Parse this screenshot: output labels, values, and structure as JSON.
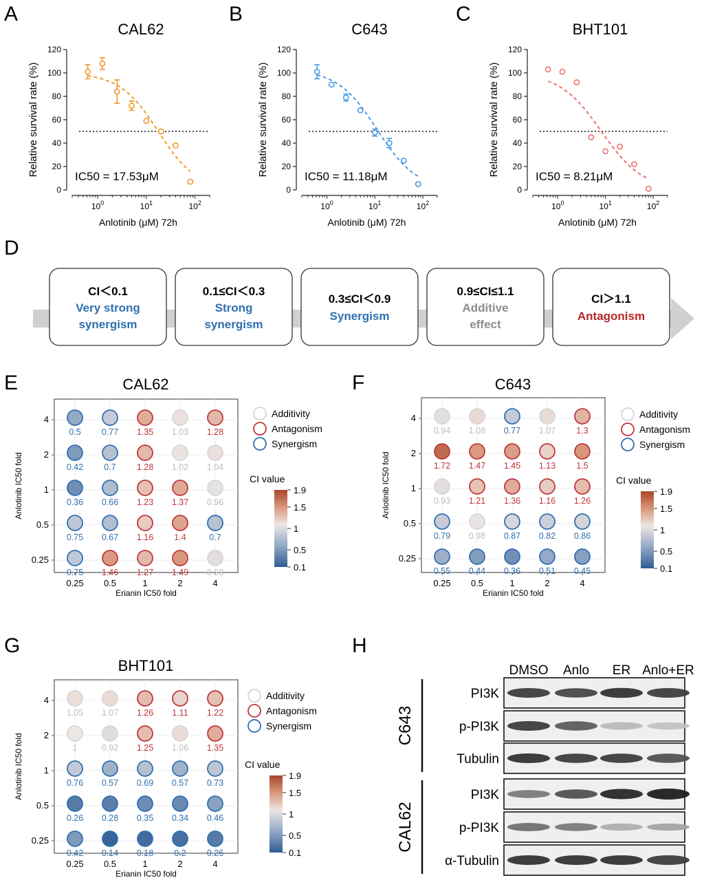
{
  "panel_letters": {
    "a": "A",
    "b": "B",
    "c": "C",
    "d": "D",
    "e": "E",
    "f": "F",
    "g": "G",
    "h": "H"
  },
  "colors": {
    "orange": "#F09A2A",
    "blue": "#4A9BE6",
    "red": "#EE6F6F",
    "syn": "#2E6FB0",
    "ant": "#C0353B",
    "add": "#999999"
  },
  "chart_data": [
    {
      "type": "scatter",
      "panel": "A",
      "title": "CAL62",
      "xlabel": "Anlotinib (μM) 72h",
      "ylabel": "Relative survival rate (%)",
      "xscale": "log",
      "xlim": [
        0.3,
        200
      ],
      "ylim": [
        0,
        120
      ],
      "yticks": [
        "0",
        "20",
        "40",
        "60",
        "80",
        "100",
        "120"
      ],
      "xticks": [
        {
          "base": "10",
          "exp": "0"
        },
        {
          "base": "10",
          "exp": "1"
        },
        {
          "base": "10",
          "exp": "2"
        }
      ],
      "x": [
        0.625,
        1.25,
        2.5,
        5,
        10,
        20,
        40,
        80
      ],
      "y": [
        101,
        108,
        84,
        72,
        59,
        50,
        38,
        7
      ],
      "err": [
        6,
        5,
        10,
        4,
        1,
        1,
        1,
        1
      ],
      "fit_ic50": 17.53,
      "fit_hill": 1.1,
      "fit_top": 100,
      "reference_line": 50,
      "annotation": "IC50 = 17.53μM",
      "color": "#F09A2A"
    },
    {
      "type": "scatter",
      "panel": "B",
      "title": "C643",
      "xlabel": "Anlotinib (μM) 72h",
      "ylabel": "Relative survival rate (%)",
      "xscale": "log",
      "xlim": [
        0.3,
        200
      ],
      "ylim": [
        0,
        120
      ],
      "yticks": [
        "0",
        "20",
        "40",
        "60",
        "80",
        "100",
        "120"
      ],
      "xticks": [
        {
          "base": "10",
          "exp": "0"
        },
        {
          "base": "10",
          "exp": "1"
        },
        {
          "base": "10",
          "exp": "2"
        }
      ],
      "x": [
        0.625,
        1.25,
        2.5,
        5,
        10,
        20,
        40,
        80
      ],
      "y": [
        101,
        90,
        79,
        68,
        49,
        40,
        25,
        5
      ],
      "err": [
        6,
        1,
        3,
        1,
        3,
        4,
        1,
        1
      ],
      "fit_ic50": 11.18,
      "fit_hill": 1.05,
      "fit_top": 103,
      "reference_line": 50,
      "annotation": "IC50 = 11.18μM",
      "color": "#4A9BE6"
    },
    {
      "type": "scatter",
      "panel": "C",
      "title": "BHT101",
      "xlabel": "Anlotinib (μM) 72h",
      "ylabel": "Relative survival rate (%)",
      "xscale": "log",
      "xlim": [
        0.3,
        200
      ],
      "ylim": [
        0,
        120
      ],
      "yticks": [
        "0",
        "20",
        "40",
        "60",
        "80",
        "100",
        "120"
      ],
      "xticks": [
        {
          "base": "10",
          "exp": "0"
        },
        {
          "base": "10",
          "exp": "1"
        },
        {
          "base": "10",
          "exp": "2"
        }
      ],
      "x": [
        0.625,
        1.25,
        2.5,
        5,
        10,
        20,
        40,
        80
      ],
      "y": [
        103,
        101,
        92,
        45,
        33,
        37,
        22,
        1
      ],
      "err": [
        0,
        0,
        0,
        0,
        0,
        0,
        0,
        0
      ],
      "fit_ic50": 8.21,
      "fit_hill": 1.0,
      "fit_top": 100,
      "reference_line": 50,
      "annotation": "IC50 = 8.21μM",
      "color": "#EE6F6F"
    },
    {
      "type": "heatmap",
      "panel": "E",
      "title": "CAL62",
      "xlabel": "Erianin IC50 fold",
      "ylabel": "Anlotinib IC50 fold",
      "x_categories": [
        "0.25",
        "0.5",
        "1",
        "2",
        "4"
      ],
      "y_categories": [
        "4",
        "2",
        "1",
        "0.5",
        "0.25"
      ],
      "values": [
        [
          0.5,
          0.77,
          1.35,
          1.03,
          1.28
        ],
        [
          0.42,
          0.7,
          1.28,
          1.02,
          1.04
        ],
        [
          0.36,
          0.66,
          1.23,
          1.37,
          0.96
        ],
        [
          0.75,
          0.67,
          1.16,
          1.4,
          0.7
        ],
        [
          0.75,
          1.46,
          1.27,
          1.49,
          0.93
        ]
      ],
      "legend": [
        "Additivity",
        "Antagonism",
        "Synergism"
      ],
      "colorbar_title": "CI value",
      "colorbar_ticks": [
        "1.9",
        "1.5",
        "1",
        "0.5",
        "0.1"
      ],
      "colorbar_range": [
        0.1,
        1.9
      ]
    },
    {
      "type": "heatmap",
      "panel": "F",
      "title": "C643",
      "xlabel": "Erianin IC50 fold",
      "ylabel": "Anlotinib IC50 fold",
      "x_categories": [
        "0.25",
        "0.5",
        "1",
        "2",
        "4"
      ],
      "y_categories": [
        "4",
        "2",
        "1",
        "0.5",
        "0.25"
      ],
      "values": [
        [
          0.94,
          1.08,
          0.77,
          1.07,
          1.3
        ],
        [
          1.72,
          1.47,
          1.45,
          1.13,
          1.5
        ],
        [
          0.93,
          1.21,
          1.36,
          1.16,
          1.26
        ],
        [
          0.79,
          0.98,
          0.87,
          0.82,
          0.86
        ],
        [
          0.55,
          0.44,
          0.36,
          0.51,
          0.45
        ]
      ],
      "legend": [
        "Additivity",
        "Antagonism",
        "Synergism"
      ],
      "colorbar_title": "CI value",
      "colorbar_ticks": [
        "1.9",
        "1.5",
        "1",
        "0.5",
        "0.1"
      ],
      "colorbar_range": [
        0.1,
        1.9
      ]
    },
    {
      "type": "heatmap",
      "panel": "G",
      "title": "BHT101",
      "xlabel": "Erianin IC50 fold",
      "ylabel": "Anlotinib IC50 fold",
      "x_categories": [
        "0.25",
        "0.5",
        "1",
        "2",
        "4"
      ],
      "y_categories": [
        "4",
        "2",
        "1",
        "0.5",
        "0.25"
      ],
      "values": [
        [
          1.05,
          1.07,
          1.26,
          1.11,
          1.22
        ],
        [
          1,
          0.92,
          1.25,
          1.06,
          1.35
        ],
        [
          0.76,
          0.57,
          0.69,
          0.57,
          0.73
        ],
        [
          0.26,
          0.28,
          0.35,
          0.34,
          0.46
        ],
        [
          0.42,
          0.14,
          0.18,
          0.2,
          0.26
        ]
      ],
      "legend": [
        "Additivity",
        "Antagonism",
        "Synergism"
      ],
      "colorbar_title": "CI value",
      "colorbar_ticks": [
        "1.9",
        "1.5",
        "1",
        "0.5",
        "0.1"
      ],
      "colorbar_range": [
        0.1,
        1.9
      ]
    }
  ],
  "ci_scale": {
    "boxes": [
      {
        "range": "CI＜0.1",
        "label1": "Very strong",
        "label2": "synergism",
        "color": "#2E6FB0"
      },
      {
        "range": "0.1≤CI＜0.3",
        "label1": "Strong",
        "label2": "synergism",
        "color": "#2E6FB0"
      },
      {
        "range": "0.3≤CI＜0.9",
        "label1": "Synergism",
        "label2": "",
        "color": "#2E6FB0"
      },
      {
        "range": "0.9≤CI≤1.1",
        "label1": "Additive",
        "label2": "effect",
        "color": "#8C8C8C"
      },
      {
        "range": "CI＞1.1",
        "label1": "Antagonism",
        "label2": "",
        "color": "#B42626"
      }
    ]
  },
  "western_blot": {
    "lanes": [
      "DMSO",
      "Anlo",
      "ER",
      "Anlo+ER"
    ],
    "groups": [
      {
        "name": "C643",
        "rows": [
          {
            "label": "PI3K",
            "intensity": [
              0.85,
              0.8,
              0.9,
              0.85
            ],
            "thickness": [
              0.8,
              0.75,
              0.85,
              0.8
            ]
          },
          {
            "label": "p-PI3K",
            "intensity": [
              0.85,
              0.7,
              0.25,
              0.2
            ],
            "thickness": [
              0.8,
              0.75,
              0.5,
              0.45
            ]
          },
          {
            "label": "Tubulin",
            "intensity": [
              0.9,
              0.85,
              0.85,
              0.75
            ],
            "thickness": [
              0.8,
              0.75,
              0.75,
              0.75
            ]
          }
        ]
      },
      {
        "name": "CAL62",
        "rows": [
          {
            "label": "PI3K",
            "intensity": [
              0.55,
              0.75,
              0.95,
              1.0
            ],
            "thickness": [
              0.55,
              0.75,
              0.9,
              1.0
            ]
          },
          {
            "label": "p-PI3K",
            "intensity": [
              0.6,
              0.55,
              0.3,
              0.35
            ],
            "thickness": [
              0.6,
              0.55,
              0.45,
              0.45
            ]
          },
          {
            "label": "α-Tubulin",
            "intensity": [
              0.9,
              0.9,
              0.9,
              0.85
            ],
            "thickness": [
              0.8,
              0.8,
              0.8,
              0.8
            ]
          }
        ]
      }
    ]
  }
}
